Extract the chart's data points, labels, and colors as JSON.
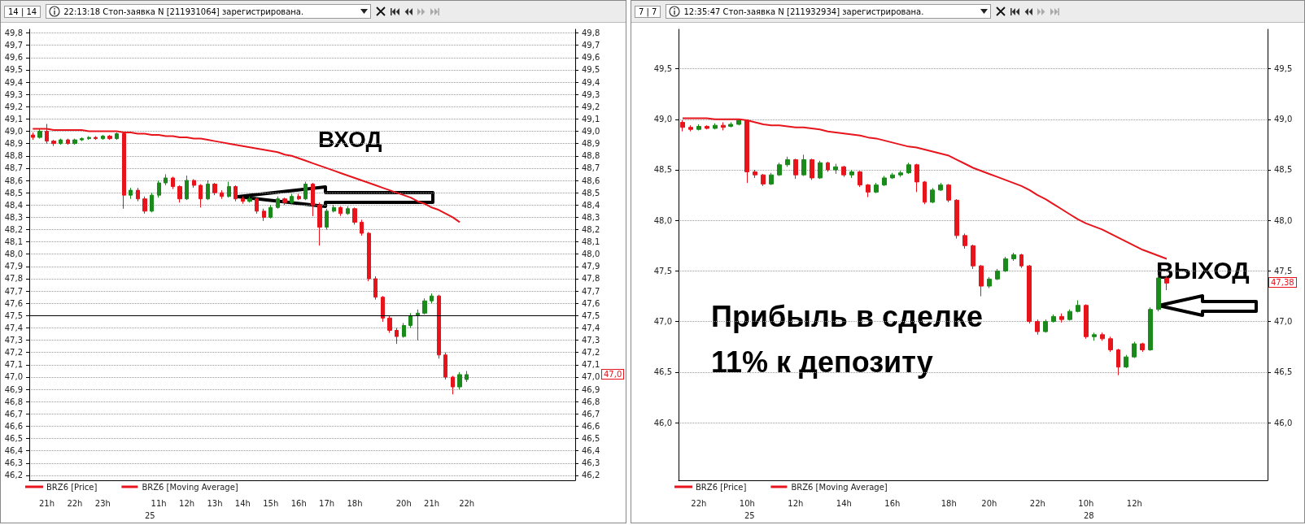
{
  "chart_data": [
    {
      "type": "candlestick",
      "title": "22:13:18 Стоп-заявка N [211931064] зарегистрирована.",
      "categories": [
        null,
        null,
        "21h",
        null,
        null,
        null,
        "22h",
        null,
        null,
        null,
        "23h",
        null,
        null,
        null,
        null,
        null,
        null,
        null,
        "11h",
        null,
        null,
        null,
        "12h",
        null,
        null,
        null,
        "13h",
        null,
        null,
        null,
        "14h",
        null,
        null,
        null,
        "15h",
        null,
        null,
        null,
        "16h",
        null,
        null,
        null,
        "17h",
        null,
        null,
        null,
        "18h",
        null,
        null,
        null,
        null,
        null,
        null,
        "20h",
        null,
        null,
        null,
        "21h",
        null,
        null,
        null,
        null,
        "22h",
        null,
        null,
        null,
        null,
        null,
        null,
        null,
        null,
        null,
        null,
        null,
        null,
        null,
        null,
        null
      ],
      "series": [
        {
          "name": "BRZ6 [Price]",
          "color": "#e8141c",
          "ohlc": [
            [
              48.97,
              48.99,
              48.93,
              48.95
            ],
            [
              48.95,
              49.02,
              48.94,
              49.0
            ],
            [
              49.0,
              49.06,
              48.9,
              48.92
            ],
            [
              48.92,
              48.93,
              48.88,
              48.9
            ],
            [
              48.9,
              48.94,
              48.89,
              48.93
            ],
            [
              48.93,
              48.94,
              48.89,
              48.9
            ],
            [
              48.9,
              48.94,
              48.89,
              48.93
            ],
            [
              48.93,
              48.95,
              48.92,
              48.94
            ],
            [
              48.94,
              48.96,
              48.93,
              48.95
            ],
            [
              48.95,
              48.96,
              48.93,
              48.94
            ],
            [
              48.94,
              48.97,
              48.93,
              48.96
            ],
            [
              48.96,
              48.97,
              48.93,
              48.94
            ],
            [
              48.94,
              48.99,
              48.93,
              48.98
            ],
            [
              48.98,
              48.99,
              48.37,
              48.48
            ],
            [
              48.48,
              48.54,
              48.45,
              48.52
            ],
            [
              48.52,
              48.54,
              48.43,
              48.45
            ],
            [
              48.45,
              48.47,
              48.33,
              48.35
            ],
            [
              48.35,
              48.5,
              48.34,
              48.48
            ],
            [
              48.48,
              48.6,
              48.46,
              48.58
            ],
            [
              48.58,
              48.65,
              48.56,
              48.62
            ],
            [
              48.62,
              48.63,
              48.53,
              48.55
            ],
            [
              48.55,
              48.56,
              48.42,
              48.45
            ],
            [
              48.45,
              48.64,
              48.44,
              48.6
            ],
            [
              48.6,
              48.61,
              48.54,
              48.56
            ],
            [
              48.56,
              48.57,
              48.38,
              48.45
            ],
            [
              48.45,
              48.6,
              48.44,
              48.57
            ],
            [
              48.57,
              48.58,
              48.48,
              48.5
            ],
            [
              48.5,
              48.52,
              48.45,
              48.47
            ],
            [
              48.47,
              48.59,
              48.46,
              48.55
            ],
            [
              48.55,
              48.56,
              48.43,
              48.45
            ],
            [
              48.45,
              48.47,
              48.41,
              48.43
            ],
            [
              48.43,
              48.47,
              48.42,
              48.45
            ],
            [
              48.45,
              48.46,
              48.33,
              48.35
            ],
            [
              48.35,
              48.37,
              48.27,
              48.3
            ],
            [
              48.3,
              48.4,
              48.29,
              48.38
            ],
            [
              48.38,
              48.47,
              48.37,
              48.45
            ],
            [
              48.45,
              48.46,
              48.4,
              48.42
            ],
            [
              48.42,
              48.49,
              48.41,
              48.47
            ],
            [
              48.47,
              48.49,
              48.44,
              48.45
            ],
            [
              48.45,
              48.59,
              48.44,
              48.57
            ],
            [
              48.57,
              48.58,
              48.31,
              48.4
            ],
            [
              48.4,
              48.42,
              48.07,
              48.22
            ],
            [
              48.22,
              48.37,
              48.2,
              48.35
            ],
            [
              48.35,
              48.4,
              48.34,
              48.38
            ],
            [
              48.38,
              48.39,
              48.31,
              48.33
            ],
            [
              48.33,
              48.39,
              48.32,
              48.37
            ],
            [
              48.37,
              48.38,
              48.24,
              48.26
            ],
            [
              48.26,
              48.28,
              48.15,
              48.17
            ],
            [
              48.17,
              48.18,
              47.78,
              47.8
            ],
            [
              47.8,
              47.82,
              47.63,
              47.65
            ],
            [
              47.65,
              47.66,
              47.45,
              47.48
            ],
            [
              47.48,
              47.5,
              47.36,
              47.38
            ],
            [
              47.38,
              47.4,
              47.27,
              47.33
            ],
            [
              47.33,
              47.44,
              47.32,
              47.42
            ],
            [
              47.42,
              47.52,
              47.4,
              47.5
            ],
            [
              47.5,
              47.55,
              47.3,
              47.52
            ],
            [
              47.52,
              47.64,
              47.51,
              47.62
            ],
            [
              47.62,
              47.68,
              47.6,
              47.66
            ],
            [
              47.66,
              47.67,
              47.15,
              47.18
            ],
            [
              47.18,
              47.2,
              46.98,
              47.0
            ],
            [
              47.0,
              47.01,
              46.86,
              46.92
            ],
            [
              46.92,
              47.04,
              46.9,
              47.02
            ],
            [
              46.98,
              47.05,
              46.96,
              47.02
            ],
            null,
            null,
            null,
            null,
            null,
            null,
            null,
            null,
            null,
            null,
            null,
            null,
            null,
            null,
            null
          ],
          "colors": [
            "#e8141c",
            "#1a8a1a",
            "#e8141c",
            "#e8141c",
            "#1a8a1a",
            "#e8141c",
            "#1a8a1a",
            "#1a8a1a",
            "#1a8a1a",
            "#e8141c",
            "#1a8a1a",
            "#e8141c",
            "#1a8a1a",
            "#e8141c",
            "#1a8a1a",
            "#e8141c",
            "#e8141c",
            "#1a8a1a",
            "#1a8a1a",
            "#1a8a1a",
            "#e8141c",
            "#e8141c",
            "#1a8a1a",
            "#e8141c",
            "#e8141c",
            "#1a8a1a",
            "#e8141c",
            "#e8141c",
            "#1a8a1a",
            "#e8141c",
            "#e8141c",
            "#1a8a1a",
            "#e8141c",
            "#e8141c",
            "#1a8a1a",
            "#1a8a1a",
            "#e8141c",
            "#1a8a1a",
            "#e8141c",
            "#1a8a1a",
            "#e8141c",
            "#e8141c",
            "#1a8a1a",
            "#1a8a1a",
            "#e8141c",
            "#1a8a1a",
            "#e8141c",
            "#e8141c",
            "#e8141c",
            "#e8141c",
            "#e8141c",
            "#e8141c",
            "#e8141c",
            "#1a8a1a",
            "#1a8a1a",
            "#1a8a1a",
            "#1a8a1a",
            "#1a8a1a",
            "#e8141c",
            "#e8141c",
            "#e8141c",
            "#1a8a1a",
            "#1a8a1a",
            null,
            null,
            null,
            null,
            null,
            null,
            null,
            null,
            null,
            null,
            null,
            null,
            null,
            null,
            null
          ]
        },
        {
          "name": "BRZ6 [Moving Average]",
          "type": "line",
          "color": "#e8141c",
          "values": [
            49.02,
            49.02,
            49.02,
            49.01,
            49.01,
            49.01,
            49.01,
            49.01,
            49.0,
            49.0,
            49.0,
            49.0,
            49.0,
            48.99,
            48.99,
            48.98,
            48.98,
            48.97,
            48.97,
            48.96,
            48.96,
            48.95,
            48.95,
            48.94,
            48.94,
            48.93,
            48.92,
            48.91,
            48.9,
            48.89,
            48.88,
            48.87,
            48.86,
            48.85,
            48.84,
            48.83,
            48.81,
            48.8,
            48.78,
            48.76,
            48.74,
            48.72,
            48.7,
            48.68,
            48.66,
            48.64,
            48.62,
            48.6,
            48.58,
            48.56,
            48.54,
            48.52,
            48.5,
            48.48,
            48.46,
            48.43,
            48.41,
            48.38,
            48.36,
            48.33,
            48.3,
            48.26,
            null,
            null,
            null,
            null,
            null,
            null,
            null,
            null,
            null,
            null,
            null,
            null,
            null,
            null,
            null,
            null
          ]
        }
      ],
      "ylim": [
        46.16,
        49.83
      ],
      "yticks": [
        {
          "value": 46.2,
          "label": "46,2"
        },
        {
          "value": 46.3,
          "label": "46,3"
        },
        {
          "value": 46.4,
          "label": "46,4"
        },
        {
          "value": 46.5,
          "label": "46,5"
        },
        {
          "value": 46.6,
          "label": "46,6"
        },
        {
          "value": 46.7,
          "label": "46,7"
        },
        {
          "value": 46.8,
          "label": "46,8"
        },
        {
          "value": 46.9,
          "label": "46,9"
        },
        {
          "value": 47.0,
          "label": "47,0"
        },
        {
          "value": 47.1,
          "label": "47,1"
        },
        {
          "value": 47.2,
          "label": "47,2"
        },
        {
          "value": 47.3,
          "label": "47,3"
        },
        {
          "value": 47.4,
          "label": "47,4"
        },
        {
          "value": 47.5,
          "label": "47,5"
        },
        {
          "value": 47.6,
          "label": "47,6"
        },
        {
          "value": 47.7,
          "label": "47,7"
        },
        {
          "value": 47.8,
          "label": "47,8"
        },
        {
          "value": 47.9,
          "label": "47,9"
        },
        {
          "value": 48.0,
          "label": "48,0"
        },
        {
          "value": 48.1,
          "label": "48,1"
        },
        {
          "value": 48.2,
          "label": "48,2"
        },
        {
          "value": 48.3,
          "label": "48,3"
        },
        {
          "value": 48.4,
          "label": "48,4"
        },
        {
          "value": 48.5,
          "label": "48,5"
        },
        {
          "value": 48.6,
          "label": "48,6"
        },
        {
          "value": 48.7,
          "label": "48,7"
        },
        {
          "value": 48.8,
          "label": "48,8"
        },
        {
          "value": 48.9,
          "label": "48,9"
        },
        {
          "value": 49.0,
          "label": "49,0"
        },
        {
          "value": 49.1,
          "label": "49,1"
        },
        {
          "value": 49.2,
          "label": "49,2"
        },
        {
          "value": 49.3,
          "label": "49,3"
        },
        {
          "value": 49.4,
          "label": "49,4"
        },
        {
          "value": 49.5,
          "label": "49,5"
        },
        {
          "value": 49.6,
          "label": "49,6"
        },
        {
          "value": 49.7,
          "label": "49,7"
        },
        {
          "value": 49.8,
          "label": "49,8"
        }
      ],
      "y2lim": [
        46.16,
        49.83
      ],
      "y2ticks": [
        {
          "value": 46.2,
          "label": "46,2"
        },
        {
          "value": 46.3,
          "label": "46,3"
        },
        {
          "value": 46.4,
          "label": "46,4"
        },
        {
          "value": 46.5,
          "label": "46,5"
        },
        {
          "value": 46.6,
          "label": "46,6"
        },
        {
          "value": 46.7,
          "label": "46,7"
        },
        {
          "value": 46.8,
          "label": "46,8"
        },
        {
          "value": 46.9,
          "label": "46,9"
        },
        {
          "value": 47.0,
          "label": "47,0"
        },
        {
          "value": 47.1,
          "label": "47,1"
        },
        {
          "value": 47.2,
          "label": "47,2"
        },
        {
          "value": 47.3,
          "label": "47,3"
        },
        {
          "value": 47.4,
          "label": "47,4"
        },
        {
          "value": 47.5,
          "label": "47,5"
        },
        {
          "value": 47.6,
          "label": "47,6"
        },
        {
          "value": 47.7,
          "label": "47,7"
        },
        {
          "value": 47.8,
          "label": "47,8"
        },
        {
          "value": 47.9,
          "label": "47,9"
        },
        {
          "value": 48.0,
          "label": "48,0"
        },
        {
          "value": 48.1,
          "label": "48,1"
        },
        {
          "value": 48.2,
          "label": "48,2"
        },
        {
          "value": 48.3,
          "label": "48,3"
        },
        {
          "value": 48.4,
          "label": "48,4"
        },
        {
          "value": 48.5,
          "label": "48,5"
        },
        {
          "value": 48.6,
          "label": "48,6"
        },
        {
          "value": 48.7,
          "label": "48,7"
        },
        {
          "value": 48.8,
          "label": "48,8"
        },
        {
          "value": 48.9,
          "label": "48,9"
        },
        {
          "value": 49.0,
          "label": "49,0"
        },
        {
          "value": 49.1,
          "label": "49,1"
        },
        {
          "value": 49.2,
          "label": "49,2"
        },
        {
          "value": 49.3,
          "label": "49,3"
        },
        {
          "value": 49.4,
          "label": "49,4"
        },
        {
          "value": 49.5,
          "label": "49,5"
        },
        {
          "value": 49.6,
          "label": "49,6"
        },
        {
          "value": 49.7,
          "label": "49,7"
        },
        {
          "value": 49.8,
          "label": "49,8"
        }
      ],
      "ref_lines": [
        {
          "axis": "y",
          "value": 47.5,
          "color": "#000000"
        }
      ],
      "annotations": [
        "14 | 14",
        "25",
        "ВХОД",
        "47,0"
      ],
      "grid": "y",
      "legend": "bottom left",
      "marker": "none"
    },
    {
      "type": "candlestick",
      "title": "12:35:47 Стоп-заявка N [211932934] зарегистрирована.",
      "categories": [
        null,
        null,
        "22h",
        null,
        null,
        null,
        null,
        null,
        "10h",
        null,
        null,
        null,
        null,
        null,
        "12h",
        null,
        null,
        null,
        null,
        null,
        "14h",
        null,
        null,
        null,
        null,
        null,
        "16h",
        null,
        null,
        null,
        null,
        null,
        null,
        "18h",
        null,
        null,
        null,
        null,
        "20h",
        null,
        null,
        null,
        null,
        null,
        "22h",
        null,
        null,
        null,
        null,
        null,
        "10h",
        null,
        null,
        null,
        null,
        null,
        "12h",
        null,
        null,
        null,
        null,
        null,
        null,
        null,
        null,
        null,
        null,
        null,
        null,
        null,
        null,
        null,
        null
      ],
      "series": [
        {
          "name": "BRZ6 [Price]",
          "color": "#e8141c",
          "ohlc": [
            [
              48.97,
              48.99,
              48.88,
              48.92
            ],
            [
              48.92,
              48.94,
              48.88,
              48.9
            ],
            [
              48.9,
              48.95,
              48.89,
              48.93
            ],
            [
              48.93,
              48.94,
              48.9,
              48.91
            ],
            [
              48.91,
              48.96,
              48.9,
              48.94
            ],
            [
              48.94,
              48.97,
              48.89,
              48.92
            ],
            [
              48.93,
              48.97,
              48.92,
              48.95
            ],
            [
              48.95,
              49.0,
              48.94,
              48.99
            ],
            [
              48.99,
              49.0,
              48.37,
              48.48
            ],
            [
              48.48,
              48.5,
              48.42,
              48.45
            ],
            [
              48.45,
              48.46,
              48.34,
              48.36
            ],
            [
              48.36,
              48.47,
              48.35,
              48.45
            ],
            [
              48.45,
              48.57,
              48.44,
              48.55
            ],
            [
              48.55,
              48.63,
              48.53,
              48.6
            ],
            [
              48.6,
              48.61,
              48.41,
              48.45
            ],
            [
              48.45,
              48.65,
              48.44,
              48.6
            ],
            [
              48.6,
              48.61,
              48.4,
              48.42
            ],
            [
              48.42,
              48.59,
              48.41,
              48.57
            ],
            [
              48.57,
              48.58,
              48.48,
              48.5
            ],
            [
              48.5,
              48.56,
              48.46,
              48.53
            ],
            [
              48.53,
              48.54,
              48.43,
              48.45
            ],
            [
              48.45,
              48.5,
              48.42,
              48.48
            ],
            [
              48.48,
              48.49,
              48.33,
              48.35
            ],
            [
              48.35,
              48.36,
              48.23,
              48.28
            ],
            [
              48.28,
              48.37,
              48.27,
              48.35
            ],
            [
              48.35,
              48.44,
              48.34,
              48.42
            ],
            [
              48.42,
              48.47,
              48.41,
              48.45
            ],
            [
              48.45,
              48.49,
              48.43,
              48.47
            ],
            [
              48.47,
              48.57,
              48.46,
              48.55
            ],
            [
              48.55,
              48.56,
              48.28,
              48.38
            ],
            [
              48.38,
              48.39,
              48.16,
              48.18
            ],
            [
              48.18,
              48.32,
              48.17,
              48.3
            ],
            [
              48.3,
              48.37,
              48.29,
              48.35
            ],
            [
              48.35,
              48.36,
              48.18,
              48.2
            ],
            [
              48.2,
              48.21,
              47.82,
              47.85
            ],
            [
              47.85,
              47.87,
              47.72,
              47.75
            ],
            [
              47.75,
              47.76,
              47.52,
              47.55
            ],
            [
              47.55,
              47.56,
              47.25,
              47.35
            ],
            [
              47.35,
              47.44,
              47.33,
              47.42
            ],
            [
              47.42,
              47.52,
              47.41,
              47.5
            ],
            [
              47.5,
              47.64,
              47.49,
              47.62
            ],
            [
              47.62,
              47.68,
              47.6,
              47.66
            ],
            [
              47.66,
              47.67,
              47.53,
              47.55
            ],
            [
              47.55,
              47.56,
              46.98,
              47.0
            ],
            [
              47.0,
              47.02,
              46.87,
              46.9
            ],
            [
              46.9,
              47.02,
              46.89,
              47.0
            ],
            [
              47.0,
              47.07,
              46.99,
              47.05
            ],
            [
              47.05,
              47.08,
              46.99,
              47.02
            ],
            [
              47.02,
              47.12,
              47.01,
              47.1
            ],
            [
              47.1,
              47.21,
              47.09,
              47.16
            ],
            [
              47.16,
              47.17,
              46.83,
              46.85
            ],
            [
              46.85,
              46.89,
              46.81,
              46.87
            ],
            [
              46.87,
              46.89,
              46.81,
              46.83
            ],
            [
              46.83,
              46.85,
              46.7,
              46.72
            ],
            [
              46.72,
              46.73,
              46.47,
              46.55
            ],
            [
              46.55,
              46.67,
              46.54,
              46.65
            ],
            [
              46.65,
              46.8,
              46.64,
              46.78
            ],
            [
              46.78,
              46.79,
              46.7,
              46.72
            ],
            [
              46.72,
              47.14,
              46.71,
              47.12
            ],
            [
              47.12,
              47.46,
              47.1,
              47.43
            ],
            [
              47.43,
              47.45,
              47.31,
              47.38
            ],
            null,
            null,
            null,
            null,
            null,
            null,
            null,
            null,
            null,
            null,
            null,
            null
          ],
          "colors": [
            "#e8141c",
            "#e8141c",
            "#1a8a1a",
            "#e8141c",
            "#1a8a1a",
            "#e8141c",
            "#1a8a1a",
            "#1a8a1a",
            "#e8141c",
            "#e8141c",
            "#e8141c",
            "#1a8a1a",
            "#1a8a1a",
            "#1a8a1a",
            "#e8141c",
            "#1a8a1a",
            "#e8141c",
            "#1a8a1a",
            "#e8141c",
            "#1a8a1a",
            "#e8141c",
            "#1a8a1a",
            "#e8141c",
            "#e8141c",
            "#1a8a1a",
            "#1a8a1a",
            "#1a8a1a",
            "#1a8a1a",
            "#1a8a1a",
            "#e8141c",
            "#e8141c",
            "#1a8a1a",
            "#1a8a1a",
            "#e8141c",
            "#e8141c",
            "#e8141c",
            "#e8141c",
            "#e8141c",
            "#1a8a1a",
            "#1a8a1a",
            "#1a8a1a",
            "#1a8a1a",
            "#e8141c",
            "#e8141c",
            "#e8141c",
            "#1a8a1a",
            "#1a8a1a",
            "#e8141c",
            "#1a8a1a",
            "#1a8a1a",
            "#e8141c",
            "#1a8a1a",
            "#e8141c",
            "#e8141c",
            "#e8141c",
            "#1a8a1a",
            "#1a8a1a",
            "#e8141c",
            "#1a8a1a",
            "#1a8a1a",
            "#e8141c",
            null,
            null,
            null,
            null,
            null,
            null,
            null,
            null,
            null,
            null,
            null,
            null
          ]
        },
        {
          "name": "BRZ6 [Moving Average]",
          "type": "line",
          "color": "#e8141c",
          "values": [
            49.01,
            49.01,
            49.01,
            49.01,
            49.0,
            49.0,
            49.0,
            49.0,
            48.99,
            48.97,
            48.95,
            48.94,
            48.94,
            48.93,
            48.92,
            48.92,
            48.91,
            48.9,
            48.88,
            48.87,
            48.86,
            48.85,
            48.84,
            48.82,
            48.81,
            48.79,
            48.77,
            48.75,
            48.73,
            48.72,
            48.7,
            48.68,
            48.66,
            48.64,
            48.6,
            48.56,
            48.52,
            48.49,
            48.46,
            48.43,
            48.4,
            48.37,
            48.34,
            48.3,
            48.25,
            48.21,
            48.16,
            48.11,
            48.06,
            48.01,
            47.97,
            47.94,
            47.91,
            47.87,
            47.83,
            47.79,
            47.75,
            47.71,
            47.68,
            47.65,
            47.62,
            null,
            null,
            null,
            null,
            null,
            null,
            null,
            null,
            null,
            null,
            null,
            null
          ]
        }
      ],
      "ylim": [
        45.43,
        49.89
      ],
      "yticks": [
        {
          "value": 46.0,
          "label": "46,0"
        },
        {
          "value": 46.5,
          "label": "46,5"
        },
        {
          "value": 47.0,
          "label": "47,0"
        },
        {
          "value": 47.5,
          "label": "47,5"
        },
        {
          "value": 48.0,
          "label": "48,0"
        },
        {
          "value": 48.5,
          "label": "48,5"
        },
        {
          "value": 49.0,
          "label": "49,0"
        },
        {
          "value": 49.5,
          "label": "49,5"
        }
      ],
      "y2lim": [
        45.43,
        49.89
      ],
      "y2ticks": [
        {
          "value": 46.0,
          "label": "46,0"
        },
        {
          "value": 46.5,
          "label": "46,5"
        },
        {
          "value": 47.0,
          "label": "47,0"
        },
        {
          "value": 47.5,
          "label": "47,5"
        },
        {
          "value": 48.0,
          "label": "48,0"
        },
        {
          "value": 48.5,
          "label": "48,5"
        },
        {
          "value": 49.0,
          "label": "49,0"
        },
        {
          "value": 49.5,
          "label": "49,5"
        }
      ],
      "annotations": [
        "7 | 7",
        "25",
        "28",
        "ВЫХОД",
        "Прибыль в сделке",
        "11% к депозиту",
        {
          "text": "47,38",
          "y": 47.38
        }
      ],
      "grid": "y",
      "legend": "bottom left",
      "marker": "none"
    }
  ]
}
